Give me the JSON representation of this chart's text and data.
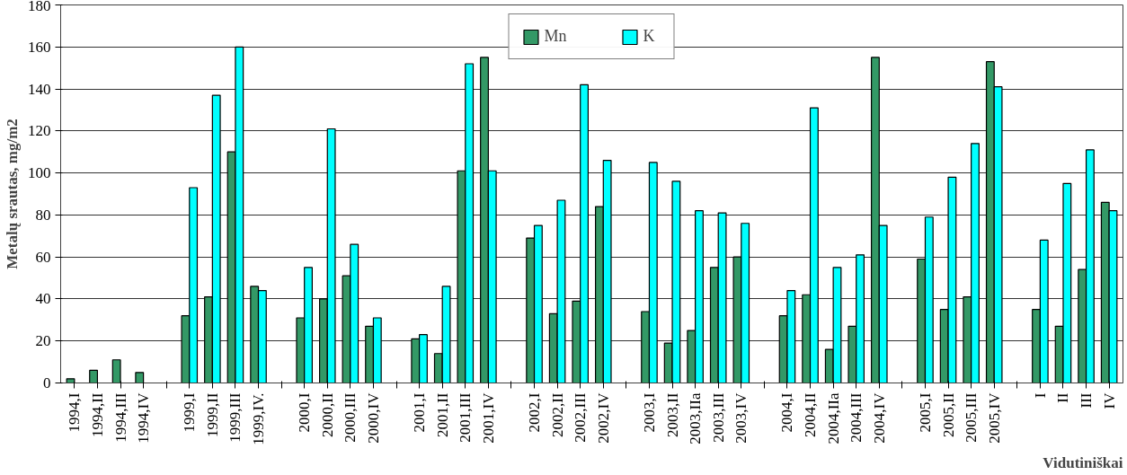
{
  "chart_data": {
    "type": "bar",
    "ylabel": "Metalų srautas, mg/m2",
    "xlabel": "Vidutiniškai",
    "categories": [
      "1994,I",
      "1994,II",
      "1994,III",
      "1994,IV",
      null,
      "1999,I",
      "1999,II",
      "1999,III",
      "1999,IV.",
      null,
      "2000,I",
      "2000,II",
      "2000,III",
      "2000,IV",
      null,
      "2001,I",
      "2001,II",
      "2001,III",
      "2001,IV",
      null,
      "2002,I",
      "2002,II",
      "2002,III",
      "2002,IV",
      null,
      "2003,I",
      "2003,II",
      "2003,IIa",
      "2003,III",
      "2003,IV",
      null,
      "2004,I",
      "2004,II",
      "2004,IIa",
      "2004,III",
      "2004,IV",
      null,
      "2005,I",
      "2005,II",
      "2005,III",
      "2005,IV",
      null,
      "I",
      "II",
      "III",
      "IV"
    ],
    "series": [
      {
        "name": "Mn",
        "color": "#339966",
        "values": [
          2,
          6,
          11,
          5,
          null,
          32,
          41,
          110,
          46,
          null,
          31,
          40,
          51,
          27,
          null,
          21,
          14,
          101,
          155,
          null,
          69,
          33,
          39,
          84,
          null,
          34,
          19,
          25,
          55,
          60,
          null,
          32,
          42,
          16,
          27,
          155,
          null,
          59,
          35,
          41,
          153,
          null,
          35,
          27,
          54,
          86
        ]
      },
      {
        "name": "K",
        "color": "#00ffff",
        "values": [
          null,
          null,
          null,
          null,
          null,
          93,
          137,
          160,
          44,
          null,
          55,
          121,
          66,
          31,
          null,
          23,
          46,
          152,
          101,
          null,
          75,
          87,
          142,
          106,
          null,
          105,
          96,
          82,
          81,
          76,
          null,
          44,
          131,
          55,
          61,
          75,
          null,
          79,
          98,
          114,
          141,
          null,
          68,
          95,
          111,
          82
        ]
      }
    ],
    "ylim": [
      0,
      180
    ],
    "yticks": [
      0,
      20,
      40,
      60,
      80,
      100,
      120,
      140,
      160,
      180
    ],
    "grid": "y",
    "legend": "top"
  }
}
